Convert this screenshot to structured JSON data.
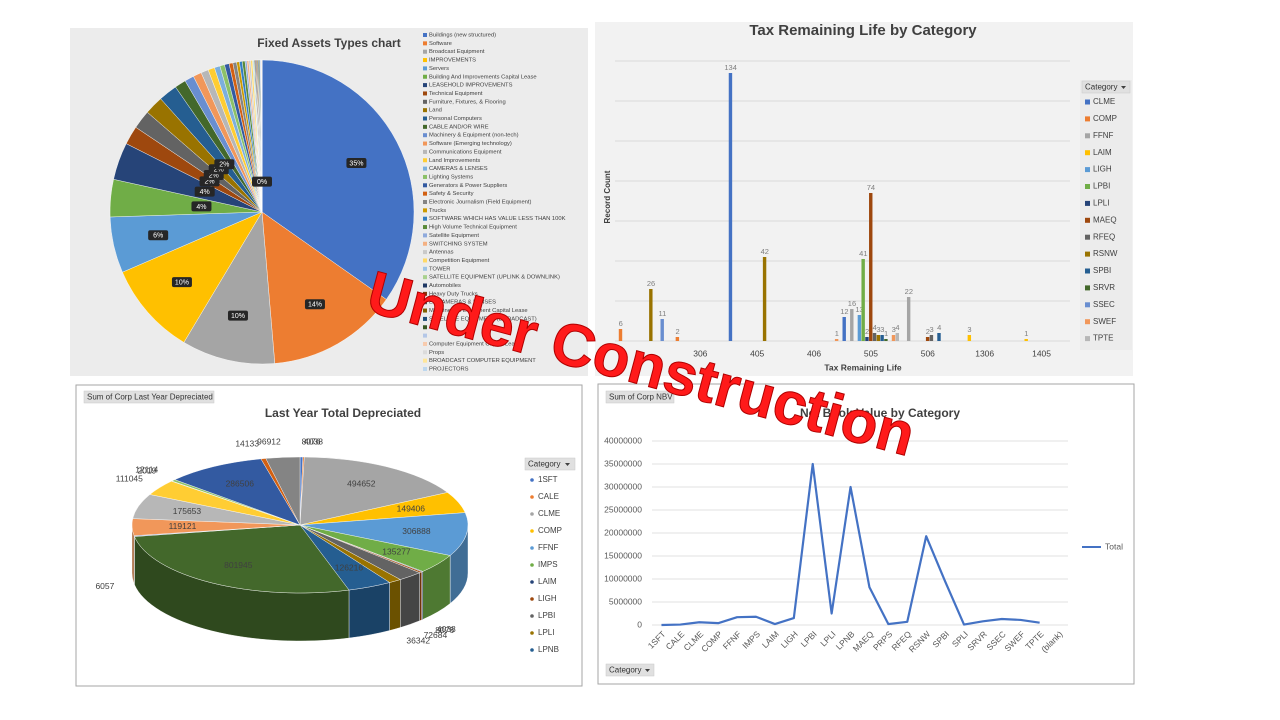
{
  "overlay": "Under Construction",
  "chart_data": [
    {
      "type": "pie",
      "title": "Fixed Assets Types chart",
      "categories": [
        "Buildings (new structured)",
        "Software",
        "Broadcast Equipment",
        "IMPROVEMENTS",
        "Servers",
        "Building And Improvements Capital Lease",
        "LEASEHOLD IMPROVEMENTS",
        "Technical Equipment",
        "Furniture, Fixtures, & Flooring",
        "Land",
        "Personal Computers",
        "CABLE AND/OR WIRE",
        "Machinery & Equipment (non-tech)",
        "Software (Emerging technology)",
        "Communications Equipment",
        "Land Improvements",
        "CAMERAS & LENSES",
        "Lighting Systems",
        "Generators & Power Suppliers",
        "Safety & Security",
        "Electronic Journalism (Field Equipment)",
        "Trucks",
        "SOFTWARE WHICH HAS VALUE LESS THAN 100K",
        "High Volume Technical Equipment",
        "Satellite Equipment",
        "SWITCHING SYSTEM",
        "Antennas",
        "Competition Equipment",
        "TOWER",
        "SATELLITE EQUIPMENT (UPLINK & DOWNLINK)",
        "Automobiles",
        "Heavy Duty Trucks",
        "EJ CAMERAS & LENSES",
        "Machinery & Equipment Capital Lease",
        "SATELLITE EQUIPMENT (BROADCAST)",
        null,
        null,
        "Computer Equipment Capital Lease",
        "Props",
        "BROADCAST COMPUTER EQUIPMENT",
        "PROJECTORS"
      ],
      "values": [
        35,
        14,
        10,
        10,
        6,
        4,
        4,
        2,
        2,
        2,
        2,
        1.2,
        1,
        0.9,
        0.8,
        0.7,
        0.6,
        0.5,
        0.5,
        0.4,
        0.4,
        0.3,
        0.3,
        0.3,
        0.2,
        0.2,
        0.2,
        0.2,
        0.1,
        0.1,
        0.1,
        0.1,
        0.1,
        0.1,
        0.1,
        0.1,
        0.1,
        0.1,
        0,
        0,
        0
      ],
      "value_labels": [
        "35%",
        "14%",
        "10%",
        "10%",
        "6%",
        "4%",
        "4%",
        "2%",
        "2%",
        "2%",
        "2%",
        null,
        null,
        null,
        null,
        null,
        null,
        null,
        null,
        null,
        null,
        null,
        null,
        null,
        null,
        null,
        null,
        null,
        null,
        null,
        null,
        null,
        null,
        null,
        null,
        null,
        null,
        null,
        null,
        null,
        "0%"
      ],
      "colors": [
        "#4472c4",
        "#ed7d31",
        "#a5a5a5",
        "#ffc000",
        "#5b9bd5",
        "#70ad47",
        "#264478",
        "#9e480e",
        "#636363",
        "#997300",
        "#255e91",
        "#43682b",
        "#698ed0",
        "#f1975a",
        "#b7b7b7",
        "#ffcd33",
        "#7cafdd",
        "#8cc168",
        "#335aa1",
        "#d26012",
        "#848484",
        "#cc9a00",
        "#327dc2",
        "#5a8a39",
        "#8faadc",
        "#f4b183",
        "#c9c9c9",
        "#ffd966",
        "#9dc3e6",
        "#a9d18e",
        "#1f3864",
        "#843c0c",
        "#525252",
        "#7f6000",
        "#1f4e79",
        "#385723",
        "#b4c7e7",
        "#f8cbad",
        "#dbdbdb",
        "#ffe699",
        "#bdd7ee"
      ]
    },
    {
      "type": "bar",
      "title": "Tax Remaining Life by Category",
      "ylabel": "Record Count",
      "xlabel": "Tax Remaining Life",
      "legend_title": "Category",
      "categories": [
        null,
        "306",
        "405",
        "406",
        "505",
        "506",
        "1306",
        "1405"
      ],
      "ylim": [
        0,
        140
      ],
      "yticks": [
        0,
        20,
        40,
        60,
        80,
        100,
        120,
        140
      ],
      "ytick_labels": false,
      "grid": true,
      "data_labels": true,
      "series": [
        {
          "name": "CLME",
          "color": "#4472c4",
          "values": [
            null,
            null,
            134,
            null,
            12,
            null,
            null,
            null
          ]
        },
        {
          "name": "COMP",
          "color": "#ed7d31",
          "values": [
            6,
            2,
            null,
            null,
            null,
            null,
            null,
            null
          ]
        },
        {
          "name": "FFNF",
          "color": "#a5a5a5",
          "values": [
            null,
            null,
            null,
            null,
            16,
            22,
            null,
            null
          ]
        },
        {
          "name": "LAIM",
          "color": "#ffc000",
          "values": [
            null,
            null,
            null,
            null,
            null,
            null,
            3,
            1
          ]
        },
        {
          "name": "LIGH",
          "color": "#5b9bd5",
          "values": [
            null,
            null,
            null,
            null,
            13,
            null,
            null,
            null
          ]
        },
        {
          "name": "LPBI",
          "color": "#70ad47",
          "values": [
            null,
            null,
            null,
            null,
            41,
            null,
            null,
            null
          ]
        },
        {
          "name": "LPLI",
          "color": "#264478",
          "values": [
            null,
            null,
            null,
            null,
            2,
            null,
            null,
            null
          ]
        },
        {
          "name": "MAEQ",
          "color": "#9e480e",
          "values": [
            null,
            null,
            null,
            null,
            74,
            2,
            null,
            null
          ]
        },
        {
          "name": "RFEQ",
          "color": "#636363",
          "values": [
            null,
            null,
            null,
            null,
            4,
            3,
            null,
            null
          ]
        },
        {
          "name": "RSNW",
          "color": "#997300",
          "values": [
            26,
            null,
            42,
            null,
            3,
            null,
            null,
            null
          ]
        },
        {
          "name": "SPBI",
          "color": "#255e91",
          "values": [
            null,
            null,
            null,
            null,
            3,
            4,
            null,
            null
          ]
        },
        {
          "name": "SRVR",
          "color": "#43682b",
          "values": [
            null,
            null,
            null,
            null,
            1,
            null,
            null,
            null
          ]
        },
        {
          "name": "SSEC",
          "color": "#698ed0",
          "values": [
            11,
            null,
            null,
            null,
            null,
            null,
            null,
            null
          ]
        },
        {
          "name": "SWEF",
          "color": "#f1975a",
          "values": [
            null,
            null,
            null,
            1,
            3,
            null,
            null,
            null
          ]
        },
        {
          "name": "TPTE",
          "color": "#b7b7b7",
          "values": [
            null,
            null,
            null,
            null,
            4,
            null,
            null,
            null
          ]
        }
      ]
    },
    {
      "type": "pie3d",
      "title": "Last Year Total Depreciated",
      "pivot_label": "Sum of Corp Last Year Depreciated",
      "legend_title": "Category",
      "categories": [
        "1SFT",
        "CALE",
        "CLME",
        "COMP",
        "FFNF",
        "IMPS",
        "LAIM",
        "LIGH",
        "LPBI",
        "LPLI",
        "LPNB",
        null,
        null,
        null,
        null,
        null,
        null,
        null,
        null,
        null,
        null
      ],
      "values": [
        8076,
        4038,
        494652,
        149406,
        306888,
        135277,
        4038,
        8076,
        72684,
        36342,
        126216,
        801945,
        6057,
        119121,
        175653,
        111045,
        2019,
        12114,
        286506,
        14133,
        96912
      ],
      "colors": [
        "#4472c4",
        "#ed7d31",
        "#a5a5a5",
        "#ffc000",
        "#5b9bd5",
        "#70ad47",
        "#264478",
        "#9e480e",
        "#636363",
        "#997300",
        "#255e91",
        "#43682b",
        "#698ed0",
        "#f1975a",
        "#b7b7b7",
        "#ffcd33",
        "#7cafdd",
        "#8cc168",
        "#335aa1",
        "#d26012",
        "#848484"
      ]
    },
    {
      "type": "line",
      "title": "Net Book Value by Category",
      "pivot_label": "Sum of Corp NBV",
      "filter_label": "Category",
      "categories": [
        "1SFT",
        "CALE",
        "CLME",
        "COMP",
        "FFNF",
        "IMPS",
        "LAIM",
        "LIGH",
        "LPBI",
        "LPLI",
        "LPNB",
        "MAEQ",
        "PRPS",
        "RFEQ",
        "RSNW",
        "SPBI",
        "SPLI",
        "SRVR",
        "SSEC",
        "SWEF",
        "TPTE",
        "(blank)"
      ],
      "series": [
        {
          "name": "Total",
          "color": "#4472c4",
          "values": [
            0,
            100000,
            600000,
            400000,
            1700000,
            1800000,
            200000,
            1500000,
            35000000,
            2500000,
            30000000,
            8200000,
            200000,
            700000,
            19300000,
            9500000,
            100000,
            800000,
            1300000,
            1100000,
            500000,
            null
          ]
        }
      ],
      "ylim": [
        0,
        40000000
      ],
      "yticks": [
        0,
        5000000,
        10000000,
        15000000,
        20000000,
        25000000,
        30000000,
        35000000,
        40000000
      ],
      "grid": true
    }
  ]
}
